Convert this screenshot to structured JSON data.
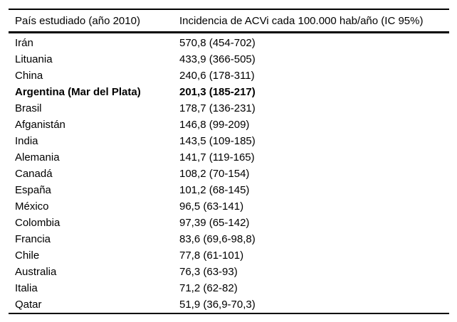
{
  "table": {
    "header": {
      "country": "País estudiado (año 2010)",
      "incidence": "Incidencia de ACVi cada 100.000 hab/año (IC 95%)"
    },
    "rows": [
      {
        "country": "Irán",
        "incidence": "570,8 (454-702)",
        "bold": false
      },
      {
        "country": "Lituania",
        "incidence": "433,9 (366-505)",
        "bold": false
      },
      {
        "country": "China",
        "incidence": "240,6 (178-311)",
        "bold": false
      },
      {
        "country": "Argentina (Mar del Plata)",
        "incidence": "201,3 (185-217)",
        "bold": true
      },
      {
        "country": "Brasil",
        "incidence": "178,7 (136-231)",
        "bold": false
      },
      {
        "country": "Afganistán",
        "incidence": "146,8 (99-209)",
        "bold": false
      },
      {
        "country": "India",
        "incidence": "143,5 (109-185)",
        "bold": false
      },
      {
        "country": "Alemania",
        "incidence": "141,7 (119-165)",
        "bold": false
      },
      {
        "country": "Canadá",
        "incidence": "108,2 (70-154)",
        "bold": false
      },
      {
        "country": "España",
        "incidence": "101,2 (68-145)",
        "bold": false
      },
      {
        "country": "México",
        "incidence": "96,5 (63-141)",
        "bold": false
      },
      {
        "country": "Colombia",
        "incidence": "97,39 (65-142)",
        "bold": false
      },
      {
        "country": "Francia",
        "incidence": "83,6 (69,6-98,8)",
        "bold": false
      },
      {
        "country": "Chile",
        "incidence": "77,8 (61-101)",
        "bold": false
      },
      {
        "country": "Australia",
        "incidence": "76,3 (63-93)",
        "bold": false
      },
      {
        "country": "Italia",
        "incidence": "71,2 (62-82)",
        "bold": false
      },
      {
        "country": "Qatar",
        "incidence": "51,9 (36,9-70,3)",
        "bold": false
      }
    ],
    "colors": {
      "text": "#000000",
      "rule": "#000000",
      "background": "#ffffff"
    }
  }
}
